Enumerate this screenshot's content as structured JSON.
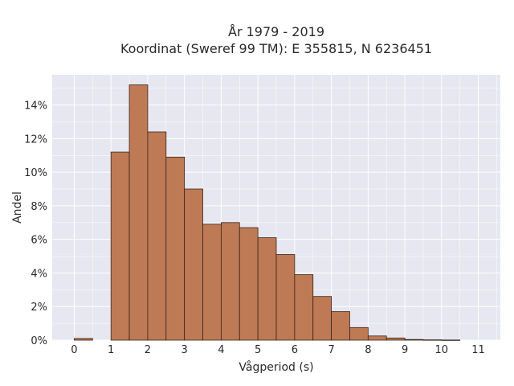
{
  "chart_data": {
    "type": "bar",
    "title": "År 1979 - 2019",
    "subtitle": "Koordinat (Sweref 99 TM): E 355815, N 6236451",
    "xlabel": "Vågperiod (s)",
    "ylabel": "Andel",
    "xlim": [
      -0.6,
      11.6
    ],
    "ylim": [
      0,
      0.158
    ],
    "x_ticks": [
      0,
      1,
      2,
      3,
      4,
      5,
      6,
      7,
      8,
      9,
      10,
      11
    ],
    "y_ticks": [
      0,
      0.02,
      0.04,
      0.06,
      0.08,
      0.1,
      0.12,
      0.14
    ],
    "y_tick_labels": [
      "0%",
      "2%",
      "4%",
      "6%",
      "8%",
      "10%",
      "12%",
      "14%"
    ],
    "bin_width": 0.5,
    "bins": [
      {
        "start": 0.0,
        "value": 0.001
      },
      {
        "start": 1.0,
        "value": 0.112
      },
      {
        "start": 1.5,
        "value": 0.152
      },
      {
        "start": 2.0,
        "value": 0.124
      },
      {
        "start": 2.5,
        "value": 0.109
      },
      {
        "start": 3.0,
        "value": 0.09
      },
      {
        "start": 3.5,
        "value": 0.069
      },
      {
        "start": 4.0,
        "value": 0.07
      },
      {
        "start": 4.5,
        "value": 0.067
      },
      {
        "start": 5.0,
        "value": 0.061
      },
      {
        "start": 5.5,
        "value": 0.051
      },
      {
        "start": 6.0,
        "value": 0.039
      },
      {
        "start": 6.5,
        "value": 0.026
      },
      {
        "start": 7.0,
        "value": 0.017
      },
      {
        "start": 7.5,
        "value": 0.0075
      },
      {
        "start": 8.0,
        "value": 0.0025
      },
      {
        "start": 8.5,
        "value": 0.0013
      },
      {
        "start": 9.0,
        "value": 0.0004
      },
      {
        "start": 9.5,
        "value": 0.0002
      },
      {
        "start": 10.0,
        "value": 0.0001
      }
    ],
    "grid": true,
    "colors": {
      "bar_fill": "#bd7a55",
      "bar_stroke": "#3b2418",
      "plot_bg": "#e6e7f0",
      "grid": "#ffffff"
    }
  }
}
